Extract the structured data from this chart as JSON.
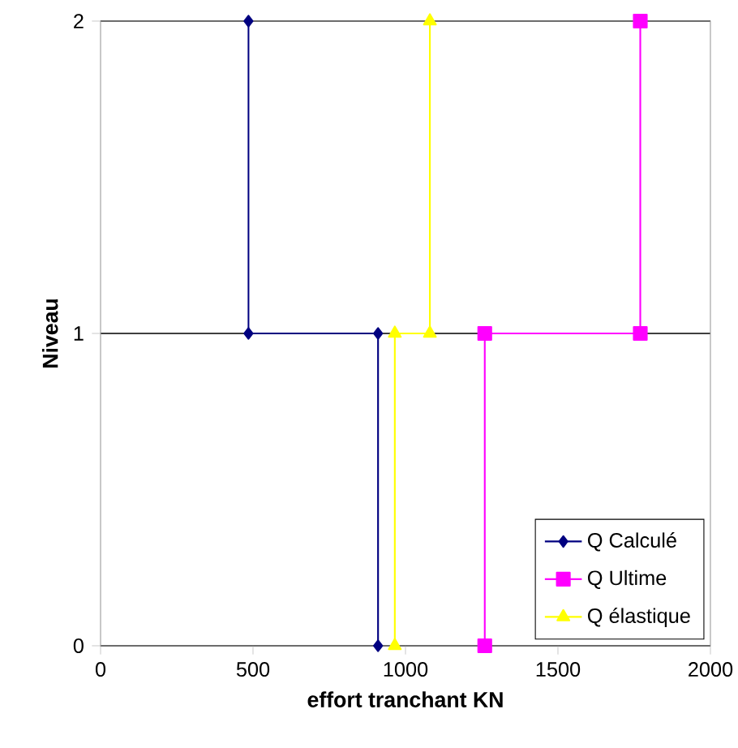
{
  "chart_data": {
    "type": "line",
    "xlabel": "effort tranchant  KN",
    "ylabel": "Niveau",
    "series": [
      {
        "name": "Q Calculé",
        "color": "#000080",
        "marker": "diamond",
        "x": [
          485,
          485,
          910,
          910
        ],
        "values": [
          2,
          1,
          1,
          0
        ]
      },
      {
        "name": "Q Ultime",
        "color": "#ff00ff",
        "marker": "square",
        "x": [
          1770,
          1770,
          1260,
          1260
        ],
        "values": [
          2,
          1,
          1,
          0
        ]
      },
      {
        "name": "Q élastique",
        "color": "#ffff00",
        "marker": "triangle",
        "x": [
          1080,
          1080,
          965,
          965
        ],
        "values": [
          2,
          1,
          1,
          0
        ]
      }
    ],
    "xlim": [
      0,
      2000
    ],
    "xticks": [
      0,
      500,
      1000,
      1500,
      2000
    ],
    "ylim": [
      0,
      2
    ],
    "yticks": [
      0,
      1,
      2
    ],
    "grid": "y",
    "legend": "bottom right"
  }
}
